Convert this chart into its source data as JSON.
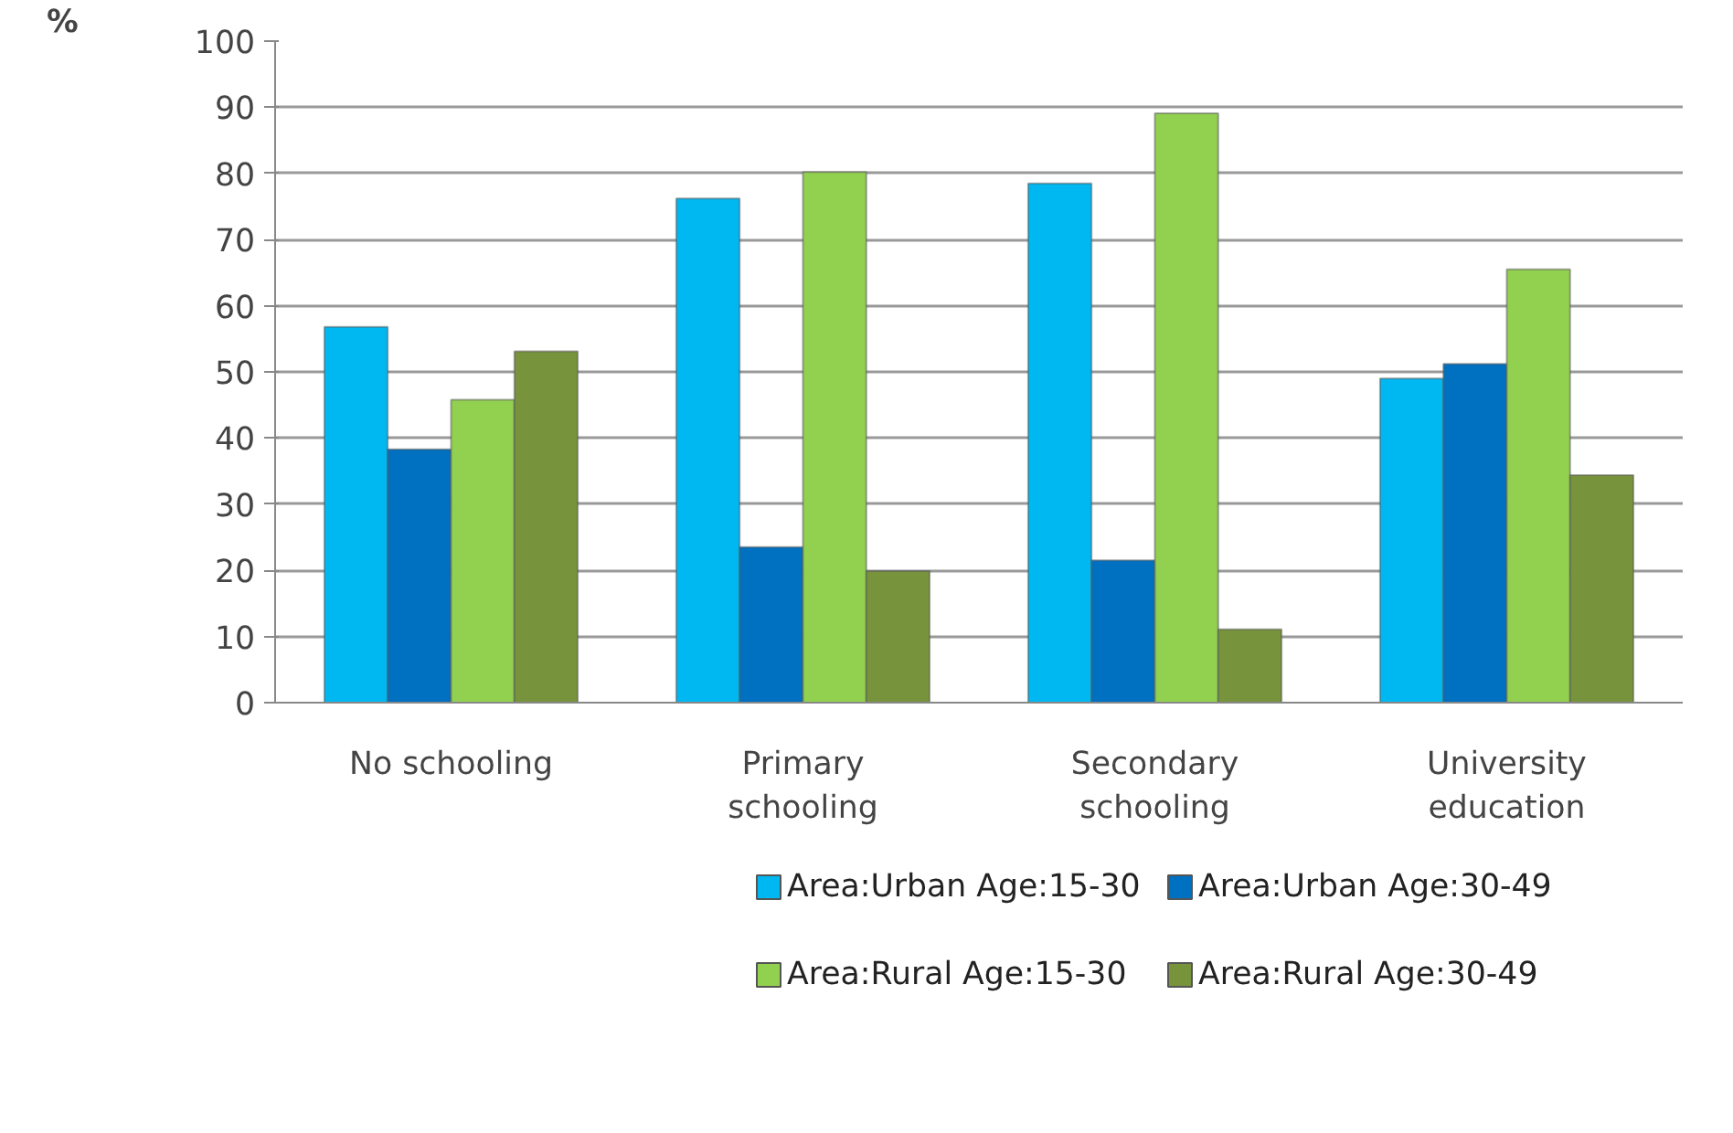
{
  "chart_data": {
    "type": "bar",
    "ylabel": "%",
    "categories": [
      "No schooling",
      "Primary schooling",
      "Secondary schooling",
      "University education"
    ],
    "series": [
      {
        "name": "Area:Urban Age:15-30",
        "color": "#00b8f1",
        "values": [
          56.8,
          76.2,
          78.5,
          49.0
        ]
      },
      {
        "name": "Area:Urban Age:30-49",
        "color": "#0070c0",
        "values": [
          38.3,
          23.5,
          21.5,
          51.2
        ]
      },
      {
        "name": "Area:Rural Age:15-30",
        "color": "#92d050",
        "values": [
          45.8,
          80.2,
          89.1,
          65.5
        ]
      },
      {
        "name": "Area:Rural Age:30-49",
        "color": "#77933c",
        "values": [
          53.1,
          19.9,
          11.1,
          34.4
        ]
      }
    ],
    "ylim": [
      0,
      100
    ],
    "yticks": [
      0,
      10,
      20,
      30,
      40,
      50,
      60,
      70,
      80,
      90,
      100
    ],
    "grid": "y",
    "legend": "bottom"
  }
}
